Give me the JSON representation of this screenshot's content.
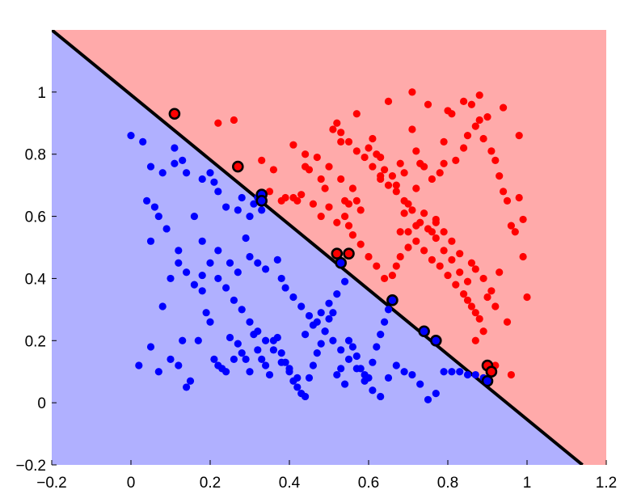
{
  "chart_data": {
    "type": "scatter",
    "title": "",
    "xlabel": "",
    "ylabel": "",
    "xlim": [
      -0.2,
      1.2
    ],
    "ylim": [
      -0.2,
      1.2
    ],
    "grid": false,
    "xticks": [
      -0.2,
      0,
      0.2,
      0.4,
      0.6,
      0.8,
      1,
      1.2
    ],
    "xtick_labels": [
      "−0.2",
      "0",
      "0.2",
      "0.4",
      "0.6",
      "0.8",
      "1",
      "1.2"
    ],
    "yticks": [
      -0.2,
      0,
      0.2,
      0.4,
      0.6,
      0.8,
      1
    ],
    "ytick_labels": [
      "−0.2",
      "0",
      "0.2",
      "0.4",
      "0.6",
      "0.8",
      "1"
    ],
    "colors": {
      "region_above": "#ffaaaa",
      "region_below": "#b0b0ff",
      "class_red": "#ff0000",
      "class_blue": "#0000ff",
      "boundary": "#000000"
    },
    "decision_boundary": [
      [
        -0.2,
        1.2
      ],
      [
        1.14,
        -0.2
      ]
    ],
    "series": [
      {
        "class": "red",
        "points": [
          [
            0.11,
            0.93
          ],
          [
            0.26,
            0.91
          ],
          [
            0.22,
            0.9
          ],
          [
            0.27,
            0.76
          ],
          [
            0.33,
            0.78
          ],
          [
            0.36,
            0.75
          ],
          [
            0.38,
            0.65
          ],
          [
            0.39,
            0.66
          ],
          [
            0.35,
            0.68
          ],
          [
            0.41,
            0.83
          ],
          [
            0.44,
            0.8
          ],
          [
            0.44,
            0.76
          ],
          [
            0.45,
            0.75
          ],
          [
            0.41,
            0.66
          ],
          [
            0.42,
            0.65
          ],
          [
            0.43,
            0.67
          ],
          [
            0.46,
            0.64
          ],
          [
            0.48,
            0.6
          ],
          [
            0.5,
            0.76
          ],
          [
            0.51,
            0.88
          ],
          [
            0.52,
            0.9
          ],
          [
            0.53,
            0.84
          ],
          [
            0.53,
            0.72
          ],
          [
            0.54,
            0.65
          ],
          [
            0.55,
            0.64
          ],
          [
            0.56,
            0.69
          ],
          [
            0.57,
            0.65
          ],
          [
            0.58,
            0.62
          ],
          [
            0.57,
            0.93
          ],
          [
            0.6,
            0.82
          ],
          [
            0.61,
            0.85
          ],
          [
            0.62,
            0.8
          ],
          [
            0.63,
            0.79
          ],
          [
            0.63,
            0.72
          ],
          [
            0.64,
            0.75
          ],
          [
            0.65,
            0.97
          ],
          [
            0.66,
            0.73
          ],
          [
            0.67,
            0.7
          ],
          [
            0.68,
            0.77
          ],
          [
            0.69,
            0.74
          ],
          [
            0.69,
            0.61
          ],
          [
            0.68,
            0.55
          ],
          [
            0.7,
            0.64
          ],
          [
            0.71,
            0.88
          ],
          [
            0.71,
            1.0
          ],
          [
            0.72,
            0.81
          ],
          [
            0.73,
            0.77
          ],
          [
            0.74,
            0.76
          ],
          [
            0.75,
            0.96
          ],
          [
            0.76,
            0.55
          ],
          [
            0.77,
            0.58
          ],
          [
            0.78,
            0.74
          ],
          [
            0.79,
            0.77
          ],
          [
            0.8,
            0.94
          ],
          [
            0.81,
            0.93
          ],
          [
            0.82,
            0.78
          ],
          [
            0.84,
            0.82
          ],
          [
            0.85,
            0.86
          ],
          [
            0.86,
            0.96
          ],
          [
            0.87,
            0.89
          ],
          [
            0.88,
            0.91
          ],
          [
            0.89,
            0.85
          ],
          [
            0.9,
            0.92
          ],
          [
            0.91,
            0.81
          ],
          [
            0.92,
            0.78
          ],
          [
            0.93,
            0.73
          ],
          [
            0.94,
            0.68
          ],
          [
            0.95,
            0.65
          ],
          [
            0.96,
            0.57
          ],
          [
            0.97,
            0.55
          ],
          [
            0.98,
            0.66
          ],
          [
            0.99,
            0.47
          ],
          [
            1.0,
            0.34
          ],
          [
            0.99,
            0.59
          ],
          [
            0.98,
            0.86
          ],
          [
            0.94,
            0.95
          ],
          [
            0.88,
            0.99
          ],
          [
            0.84,
            0.97
          ],
          [
            0.79,
            0.84
          ],
          [
            0.76,
            0.72
          ],
          [
            0.72,
            0.69
          ],
          [
            0.7,
            0.55
          ],
          [
            0.72,
            0.52
          ],
          [
            0.74,
            0.49
          ],
          [
            0.76,
            0.46
          ],
          [
            0.78,
            0.44
          ],
          [
            0.8,
            0.41
          ],
          [
            0.82,
            0.38
          ],
          [
            0.84,
            0.35
          ],
          [
            0.85,
            0.33
          ],
          [
            0.86,
            0.31
          ],
          [
            0.87,
            0.29
          ],
          [
            0.88,
            0.27
          ],
          [
            0.89,
            0.23
          ],
          [
            0.87,
            0.2
          ],
          [
            0.86,
            0.45
          ],
          [
            0.83,
            0.48
          ],
          [
            0.81,
            0.52
          ],
          [
            0.79,
            0.55
          ],
          [
            0.77,
            0.59
          ],
          [
            0.74,
            0.61
          ],
          [
            0.72,
            0.57
          ],
          [
            0.7,
            0.5
          ],
          [
            0.68,
            0.47
          ],
          [
            0.67,
            0.44
          ],
          [
            0.66,
            0.41
          ],
          [
            0.64,
            0.4
          ],
          [
            0.62,
            0.44
          ],
          [
            0.6,
            0.47
          ],
          [
            0.58,
            0.51
          ],
          [
            0.56,
            0.54
          ],
          [
            0.55,
            0.57
          ],
          [
            0.54,
            0.6
          ],
          [
            0.52,
            0.58
          ],
          [
            0.5,
            0.63
          ],
          [
            0.49,
            0.69
          ],
          [
            0.48,
            0.72
          ],
          [
            0.47,
            0.79
          ],
          [
            0.93,
            0.42
          ],
          [
            0.91,
            0.36
          ],
          [
            0.89,
            0.4
          ],
          [
            0.87,
            0.43
          ],
          [
            0.95,
            0.26
          ],
          [
            0.92,
            0.31
          ],
          [
            0.9,
            0.34
          ],
          [
            0.85,
            0.39
          ],
          [
            0.83,
            0.42
          ],
          [
            0.81,
            0.46
          ],
          [
            0.79,
            0.49
          ],
          [
            0.77,
            0.53
          ],
          [
            0.75,
            0.56
          ],
          [
            0.73,
            0.58
          ],
          [
            0.71,
            0.62
          ],
          [
            0.69,
            0.65
          ],
          [
            0.67,
            0.68
          ],
          [
            0.65,
            0.7
          ],
          [
            0.63,
            0.73
          ],
          [
            0.61,
            0.76
          ],
          [
            0.59,
            0.79
          ],
          [
            0.57,
            0.81
          ],
          [
            0.55,
            0.84
          ],
          [
            0.53,
            0.87
          ],
          [
            0.96,
            0.09
          ],
          [
            0.92,
            0.12
          ]
        ]
      },
      {
        "class": "blue",
        "points": [
          [
            0.0,
            0.86
          ],
          [
            0.03,
            0.84
          ],
          [
            0.05,
            0.76
          ],
          [
            0.08,
            0.74
          ],
          [
            0.11,
            0.82
          ],
          [
            0.13,
            0.78
          ],
          [
            0.14,
            0.74
          ],
          [
            0.11,
            0.77
          ],
          [
            0.18,
            0.72
          ],
          [
            0.2,
            0.74
          ],
          [
            0.21,
            0.71
          ],
          [
            0.22,
            0.68
          ],
          [
            0.24,
            0.63
          ],
          [
            0.27,
            0.62
          ],
          [
            0.28,
            0.66
          ],
          [
            0.3,
            0.6
          ],
          [
            0.31,
            0.64
          ],
          [
            0.32,
            0.66
          ],
          [
            0.33,
            0.62
          ],
          [
            0.04,
            0.65
          ],
          [
            0.06,
            0.63
          ],
          [
            0.07,
            0.6
          ],
          [
            0.09,
            0.56
          ],
          [
            0.05,
            0.52
          ],
          [
            0.12,
            0.49
          ],
          [
            0.16,
            0.6
          ],
          [
            0.18,
            0.52
          ],
          [
            0.22,
            0.49
          ],
          [
            0.25,
            0.45
          ],
          [
            0.27,
            0.42
          ],
          [
            0.29,
            0.53
          ],
          [
            0.3,
            0.47
          ],
          [
            0.32,
            0.45
          ],
          [
            0.34,
            0.43
          ],
          [
            0.37,
            0.46
          ],
          [
            0.38,
            0.4
          ],
          [
            0.39,
            0.37
          ],
          [
            0.41,
            0.34
          ],
          [
            0.43,
            0.31
          ],
          [
            0.45,
            0.28
          ],
          [
            0.47,
            0.26
          ],
          [
            0.49,
            0.23
          ],
          [
            0.51,
            0.2
          ],
          [
            0.53,
            0.17
          ],
          [
            0.55,
            0.14
          ],
          [
            0.57,
            0.11
          ],
          [
            0.59,
            0.07
          ],
          [
            0.61,
            0.04
          ],
          [
            0.63,
            0.02
          ],
          [
            0.65,
            0.08
          ],
          [
            0.67,
            0.12
          ],
          [
            0.69,
            0.1
          ],
          [
            0.71,
            0.09
          ],
          [
            0.73,
            0.06
          ],
          [
            0.75,
            0.01
          ],
          [
            0.77,
            0.03
          ],
          [
            0.79,
            0.1
          ],
          [
            0.81,
            0.1
          ],
          [
            0.83,
            0.1
          ],
          [
            0.85,
            0.09
          ],
          [
            0.87,
            0.09
          ],
          [
            0.89,
            0.08
          ],
          [
            0.02,
            0.12
          ],
          [
            0.05,
            0.18
          ],
          [
            0.07,
            0.1
          ],
          [
            0.1,
            0.14
          ],
          [
            0.12,
            0.12
          ],
          [
            0.13,
            0.2
          ],
          [
            0.14,
            0.05
          ],
          [
            0.15,
            0.07
          ],
          [
            0.17,
            0.2
          ],
          [
            0.18,
            0.36
          ],
          [
            0.19,
            0.29
          ],
          [
            0.2,
            0.26
          ],
          [
            0.21,
            0.14
          ],
          [
            0.22,
            0.12
          ],
          [
            0.23,
            0.11
          ],
          [
            0.24,
            0.1
          ],
          [
            0.25,
            0.21
          ],
          [
            0.26,
            0.14
          ],
          [
            0.27,
            0.19
          ],
          [
            0.28,
            0.16
          ],
          [
            0.29,
            0.14
          ],
          [
            0.3,
            0.1
          ],
          [
            0.31,
            0.22
          ],
          [
            0.32,
            0.17
          ],
          [
            0.33,
            0.14
          ],
          [
            0.34,
            0.12
          ],
          [
            0.35,
            0.09
          ],
          [
            0.36,
            0.2
          ],
          [
            0.37,
            0.21
          ],
          [
            0.38,
            0.16
          ],
          [
            0.39,
            0.13
          ],
          [
            0.4,
            0.1
          ],
          [
            0.41,
            0.07
          ],
          [
            0.42,
            0.05
          ],
          [
            0.43,
            0.03
          ],
          [
            0.44,
            0.02
          ],
          [
            0.45,
            0.08
          ],
          [
            0.46,
            0.12
          ],
          [
            0.47,
            0.16
          ],
          [
            0.48,
            0.19
          ],
          [
            0.49,
            0.23
          ],
          [
            0.5,
            0.27
          ],
          [
            0.51,
            0.29
          ],
          [
            0.52,
            0.09
          ],
          [
            0.53,
            0.11
          ],
          [
            0.54,
            0.06
          ],
          [
            0.55,
            0.2
          ],
          [
            0.56,
            0.18
          ],
          [
            0.57,
            0.15
          ],
          [
            0.58,
            0.11
          ],
          [
            0.59,
            0.09
          ],
          [
            0.6,
            0.08
          ],
          [
            0.61,
            0.13
          ],
          [
            0.62,
            0.18
          ],
          [
            0.63,
            0.22
          ],
          [
            0.64,
            0.26
          ],
          [
            0.65,
            0.3
          ],
          [
            0.66,
            0.33
          ],
          [
            0.08,
            0.31
          ],
          [
            0.1,
            0.4
          ],
          [
            0.12,
            0.45
          ],
          [
            0.14,
            0.42
          ],
          [
            0.16,
            0.38
          ],
          [
            0.18,
            0.41
          ],
          [
            0.2,
            0.45
          ],
          [
            0.22,
            0.4
          ],
          [
            0.24,
            0.37
          ],
          [
            0.26,
            0.33
          ],
          [
            0.28,
            0.3
          ],
          [
            0.3,
            0.26
          ],
          [
            0.32,
            0.23
          ],
          [
            0.34,
            0.2
          ],
          [
            0.36,
            0.17
          ],
          [
            0.38,
            0.13
          ],
          [
            0.4,
            0.11
          ],
          [
            0.42,
            0.08
          ],
          [
            0.44,
            0.22
          ],
          [
            0.46,
            0.25
          ],
          [
            0.48,
            0.29
          ],
          [
            0.5,
            0.32
          ],
          [
            0.52,
            0.35
          ],
          [
            0.54,
            0.39
          ]
        ]
      }
    ],
    "highlighted_points": [
      {
        "class": "red",
        "x": 0.11,
        "y": 0.93
      },
      {
        "class": "red",
        "x": 0.27,
        "y": 0.76
      },
      {
        "class": "blue",
        "x": 0.33,
        "y": 0.67
      },
      {
        "class": "blue",
        "x": 0.33,
        "y": 0.65
      },
      {
        "class": "red",
        "x": 0.52,
        "y": 0.48
      },
      {
        "class": "red",
        "x": 0.55,
        "y": 0.48
      },
      {
        "class": "blue",
        "x": 0.53,
        "y": 0.45
      },
      {
        "class": "blue",
        "x": 0.66,
        "y": 0.33
      },
      {
        "class": "blue",
        "x": 0.74,
        "y": 0.23
      },
      {
        "class": "blue",
        "x": 0.77,
        "y": 0.2
      },
      {
        "class": "red",
        "x": 0.9,
        "y": 0.12
      },
      {
        "class": "red",
        "x": 0.91,
        "y": 0.1
      },
      {
        "class": "blue",
        "x": 0.9,
        "y": 0.07
      }
    ]
  }
}
